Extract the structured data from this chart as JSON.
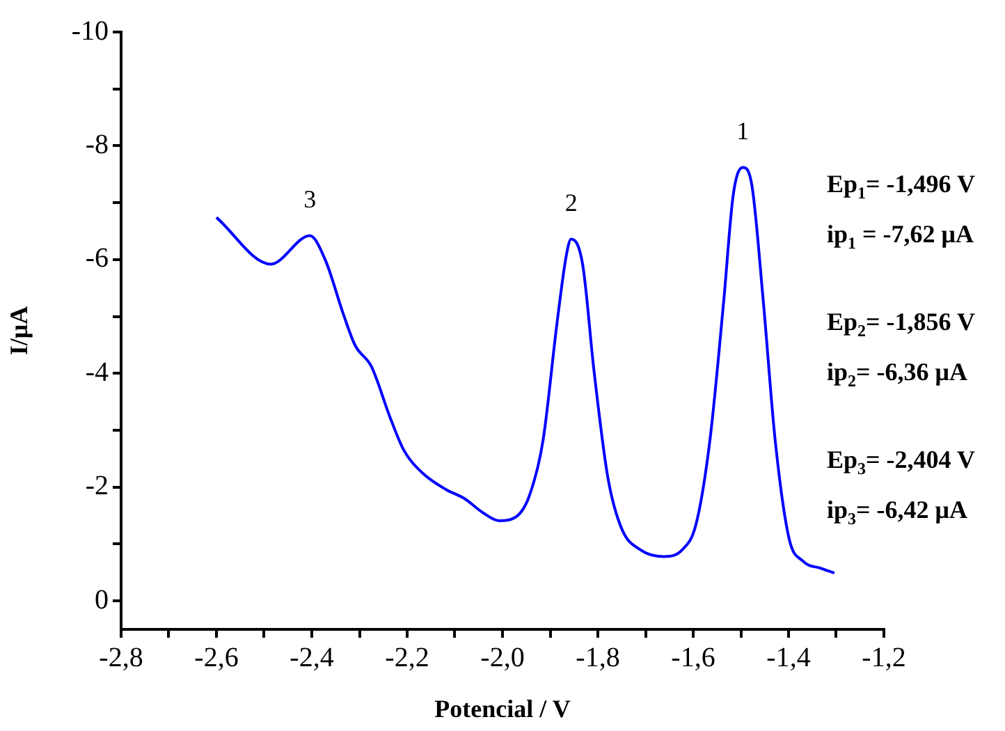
{
  "chart_data": {
    "type": "line",
    "xlabel": "Potencial / V",
    "ylabel": "I/μA",
    "x": [
      -2.6,
      -2.486,
      -2.404,
      -2.372,
      -2.333,
      -2.309,
      -2.275,
      -2.236,
      -2.207,
      -2.168,
      -2.119,
      -2.08,
      -2.041,
      -2.007,
      -1.973,
      -1.944,
      -1.915,
      -1.886,
      -1.866,
      -1.856,
      -1.832,
      -1.808,
      -1.779,
      -1.75,
      -1.711,
      -1.662,
      -1.623,
      -1.594,
      -1.565,
      -1.536,
      -1.516,
      -1.496,
      -1.477,
      -1.453,
      -1.428,
      -1.399,
      -1.37,
      -1.331,
      -1.304
    ],
    "series": [
      {
        "color": "#0000ff",
        "values": [
          -6.74,
          -5.92,
          -6.42,
          -6.0,
          -5.02,
          -4.49,
          -4.12,
          -3.23,
          -2.65,
          -2.25,
          -1.96,
          -1.8,
          -1.55,
          -1.41,
          -1.47,
          -1.84,
          -2.82,
          -4.86,
          -6.08,
          -6.36,
          -5.92,
          -4.04,
          -2.17,
          -1.27,
          -0.9,
          -0.78,
          -0.9,
          -1.35,
          -2.82,
          -5.27,
          -7.14,
          -7.62,
          -7.31,
          -5.27,
          -2.82,
          -1.1,
          -0.7,
          -0.57,
          -0.49
        ]
      }
    ],
    "xlim": [
      -2.8,
      -1.2
    ],
    "xticks": [
      {
        "value": -2.8,
        "label": "-2,8"
      },
      {
        "value": -2.7,
        "label": null
      },
      {
        "value": -2.6,
        "label": "-2,6"
      },
      {
        "value": -2.5,
        "label": null
      },
      {
        "value": -2.4,
        "label": "-2,4"
      },
      {
        "value": -2.3,
        "label": null
      },
      {
        "value": -2.2,
        "label": "-2,2"
      },
      {
        "value": -2.1,
        "label": null
      },
      {
        "value": -2.0,
        "label": "-2,0"
      },
      {
        "value": -1.9,
        "label": null
      },
      {
        "value": -1.8,
        "label": "-1,8"
      },
      {
        "value": -1.7,
        "label": null
      },
      {
        "value": -1.6,
        "label": "-1,6"
      },
      {
        "value": -1.5,
        "label": null
      },
      {
        "value": -1.4,
        "label": "-1,4"
      },
      {
        "value": -1.3,
        "label": null
      },
      {
        "value": -1.2,
        "label": "-1,2"
      }
    ],
    "ylim": [
      0.5,
      -10
    ],
    "yticks": [
      0,
      {
        "value": -1,
        "label": null
      },
      -2,
      {
        "value": -3,
        "label": null
      },
      -4,
      {
        "value": -5,
        "label": null
      },
      -6,
      {
        "value": -7,
        "label": null
      },
      -8,
      {
        "value": -9,
        "label": null
      },
      -10
    ],
    "grid": false,
    "legend": false,
    "marker": "none",
    "line_style": "solid",
    "annotations": [
      {
        "text": "1",
        "x": -1.496,
        "y": -7.62
      },
      {
        "text": "2",
        "x": -1.856,
        "y": -6.36
      },
      {
        "text": "3",
        "x": -2.404,
        "y": -6.42
      },
      "Ep$_{1}$= -1,496 V",
      "ip$_{1}$ = -7,62 μA",
      "Ep$_{2}$= -1,856 V",
      "ip$_{2}$= -6,36 μA",
      "Ep$_{3}$= -2,404 V",
      "ip$_{3}$= -6,42 μA"
    ]
  }
}
